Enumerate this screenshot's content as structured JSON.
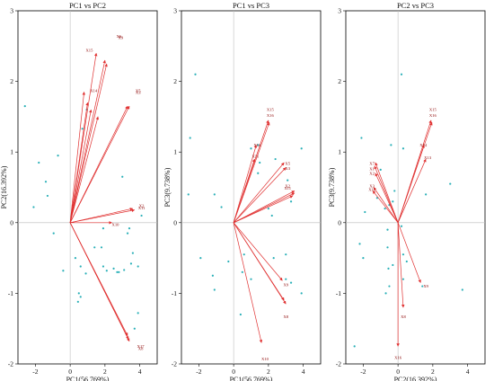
{
  "colors": {
    "arrow": "#e03030",
    "label": "#8b0000",
    "point": "#2ab0b8",
    "frame": "#000000",
    "zero": "#bdbdbd"
  },
  "chart_data": [
    {
      "type": "scatter",
      "title": "PC1 vs PC2",
      "xlabel": "PC1(56.769%)",
      "ylabel": "PC2(16.392%)",
      "xlim": [
        -3,
        5
      ],
      "ylim": [
        -2,
        3
      ],
      "xticks": [
        "-2",
        "0",
        "2",
        "4"
      ],
      "yticks": [
        "-2",
        "-1",
        "0",
        "1",
        "2",
        "3"
      ],
      "grid": false,
      "points": [
        {
          "x": -2.6,
          "y": 1.65
        },
        {
          "x": -1.8,
          "y": 0.85
        },
        {
          "x": -1.4,
          "y": 0.58
        },
        {
          "x": -1.3,
          "y": 0.38
        },
        {
          "x": -0.7,
          "y": 0.95
        },
        {
          "x": -2.1,
          "y": 0.22
        },
        {
          "x": -0.95,
          "y": -0.15
        },
        {
          "x": -0.4,
          "y": -0.68
        },
        {
          "x": 0.3,
          "y": -0.5
        },
        {
          "x": 0.6,
          "y": -0.62
        },
        {
          "x": 0.9,
          "y": -0.72
        },
        {
          "x": 0.6,
          "y": -1.05
        },
        {
          "x": 0.45,
          "y": -1.12
        },
        {
          "x": 0.5,
          "y": -1.0
        },
        {
          "x": 1.4,
          "y": -0.35
        },
        {
          "x": 1.8,
          "y": -0.35
        },
        {
          "x": 2.1,
          "y": -0.68
        },
        {
          "x": 2.5,
          "y": -0.65
        },
        {
          "x": 2.7,
          "y": -0.7
        },
        {
          "x": 3.1,
          "y": -0.67
        },
        {
          "x": 3.5,
          "y": -0.58
        },
        {
          "x": 3.6,
          "y": -0.43
        },
        {
          "x": 3.9,
          "y": -0.62
        },
        {
          "x": 3.4,
          "y": -0.08
        },
        {
          "x": 3.0,
          "y": 0.65
        },
        {
          "x": 4.1,
          "y": 0.1
        },
        {
          "x": 3.3,
          "y": -0.15
        },
        {
          "x": 3.9,
          "y": -1.28
        },
        {
          "x": 1.9,
          "y": -0.08
        },
        {
          "x": 3.7,
          "y": -1.5
        },
        {
          "x": 0.7,
          "y": 1.33
        },
        {
          "x": 0.95,
          "y": 1.6
        },
        {
          "x": 1.9,
          "y": -0.62
        },
        {
          "x": 2.8,
          "y": -0.7
        }
      ],
      "vectors": [
        {
          "label": "X15",
          "x": 1.5,
          "y": 2.4,
          "lx": 1.1,
          "ly": 2.42
        },
        {
          "label": "X6",
          "x": 2.0,
          "y": 2.3,
          "lx": 2.8,
          "ly": 2.62
        },
        {
          "label": "X9",
          "x": 2.1,
          "y": 2.25,
          "lx": 2.9,
          "ly": 2.6
        },
        {
          "label": "X14",
          "x": 0.8,
          "y": 1.85,
          "lx": 1.35,
          "ly": 1.85
        },
        {
          "label": "X1",
          "x": 1.0,
          "y": 1.7,
          "lx": null,
          "ly": null
        },
        {
          "label": "X2",
          "x": 1.2,
          "y": 1.6,
          "lx": null,
          "ly": null
        },
        {
          "label": "X4",
          "x": 1.6,
          "y": 1.5,
          "lx": null,
          "ly": null
        },
        {
          "label": "X5",
          "x": 3.3,
          "y": 1.65,
          "lx": 3.9,
          "ly": 1.85
        },
        {
          "label": "X3",
          "x": 3.4,
          "y": 1.65,
          "lx": 3.9,
          "ly": 1.82
        },
        {
          "label": "X2",
          "x": 3.6,
          "y": 0.2,
          "lx": 4.1,
          "ly": 0.22
        },
        {
          "label": "X11",
          "x": 3.7,
          "y": 0.18,
          "lx": 4.1,
          "ly": 0.19
        },
        {
          "label": "X10",
          "x": 2.4,
          "y": 0.0,
          "lx": 2.6,
          "ly": -0.05
        },
        {
          "label": "X12",
          "x": 3.3,
          "y": -1.6,
          "lx": null,
          "ly": null
        },
        {
          "label": "X17",
          "x": 3.35,
          "y": -1.65,
          "lx": 4.05,
          "ly": -1.77
        },
        {
          "label": "X8",
          "x": 3.4,
          "y": -1.68,
          "lx": 4.05,
          "ly": -1.8
        }
      ]
    },
    {
      "type": "scatter",
      "title": "PC1 vs PC3",
      "xlabel": "PC1(56.769%)",
      "ylabel": "PC3(9.738%)",
      "xlim": [
        -3,
        5
      ],
      "ylim": [
        -2,
        3
      ],
      "xticks": [
        "-2",
        "0",
        "2",
        "4"
      ],
      "yticks": [
        "-2",
        "-1",
        "0",
        "1",
        "2",
        "3"
      ],
      "grid": false,
      "points": [
        {
          "x": -2.2,
          "y": 2.1
        },
        {
          "x": -2.5,
          "y": 1.2
        },
        {
          "x": -2.6,
          "y": 0.4
        },
        {
          "x": -1.1,
          "y": 0.4
        },
        {
          "x": -0.7,
          "y": 0.22
        },
        {
          "x": -1.9,
          "y": -0.5
        },
        {
          "x": -1.2,
          "y": -0.75
        },
        {
          "x": -1.1,
          "y": -0.95
        },
        {
          "x": -0.3,
          "y": -0.55
        },
        {
          "x": 0.6,
          "y": -0.45
        },
        {
          "x": 0.5,
          "y": -0.7
        },
        {
          "x": 1.0,
          "y": -0.8
        },
        {
          "x": 0.4,
          "y": -1.3
        },
        {
          "x": 2.3,
          "y": -0.5
        },
        {
          "x": 3.0,
          "y": -0.45
        },
        {
          "x": 3.3,
          "y": -0.85
        },
        {
          "x": 3.9,
          "y": -1.0
        },
        {
          "x": 1.4,
          "y": 0.7
        },
        {
          "x": 1.5,
          "y": 0.85
        },
        {
          "x": 2.4,
          "y": 0.9
        },
        {
          "x": 3.1,
          "y": 0.6
        },
        {
          "x": 3.9,
          "y": 1.05
        },
        {
          "x": 1.0,
          "y": 1.05
        },
        {
          "x": 1.4,
          "y": 1.1
        },
        {
          "x": 2.0,
          "y": 0.2
        },
        {
          "x": 2.2,
          "y": 0.1
        },
        {
          "x": 3.3,
          "y": 0.3
        },
        {
          "x": 3.0,
          "y": -0.8
        }
      ],
      "vectors": [
        {
          "label": "X15",
          "x": 2.0,
          "y": 1.45,
          "lx": 2.1,
          "ly": 1.58
        },
        {
          "label": "X16",
          "x": 2.05,
          "y": 1.42,
          "lx": 2.1,
          "ly": 1.5
        },
        {
          "label": "X14",
          "x": 1.3,
          "y": 1.1,
          "lx": 1.35,
          "ly": 1.08
        },
        {
          "label": "X11",
          "x": 1.2,
          "y": 0.9,
          "lx": 1.25,
          "ly": 0.92
        },
        {
          "label": "X5",
          "x": 2.9,
          "y": 0.85,
          "lx": 3.1,
          "ly": 0.82
        },
        {
          "label": "X3",
          "x": 3.0,
          "y": 0.78,
          "lx": 3.1,
          "ly": 0.75
        },
        {
          "label": "X2",
          "x": 3.5,
          "y": 0.45,
          "lx": 3.1,
          "ly": 0.5
        },
        {
          "label": "X11",
          "x": 3.5,
          "y": 0.42,
          "lx": 3.1,
          "ly": 0.47
        },
        {
          "label": "X10",
          "x": 3.4,
          "y": 0.38,
          "lx": null,
          "ly": null
        },
        {
          "label": "X9",
          "x": 2.8,
          "y": -0.82,
          "lx": 3.0,
          "ly": -0.9
        },
        {
          "label": "X7",
          "x": 2.9,
          "y": -1.1,
          "lx": null,
          "ly": null
        },
        {
          "label": "X8",
          "x": 3.0,
          "y": -1.15,
          "lx": 3.0,
          "ly": -1.35
        },
        {
          "label": "X10",
          "x": 1.6,
          "y": -1.7,
          "lx": 1.8,
          "ly": -1.95
        }
      ]
    },
    {
      "type": "scatter",
      "title": "PC2 vs PC3",
      "xlabel": "PC2(16.392%)",
      "ylabel": "PC3(9.738%)",
      "xlim": [
        -3,
        5
      ],
      "ylim": [
        -2,
        3
      ],
      "xticks": [
        "-2",
        "0",
        "2",
        "4"
      ],
      "yticks": [
        "-2",
        "-1",
        "0",
        "1",
        "2",
        "3"
      ],
      "grid": false,
      "points": [
        {
          "x": 0.2,
          "y": 2.1
        },
        {
          "x": -2.1,
          "y": 1.2
        },
        {
          "x": -0.4,
          "y": 1.1
        },
        {
          "x": 0.3,
          "y": 1.05
        },
        {
          "x": -1.0,
          "y": 0.75
        },
        {
          "x": -0.2,
          "y": 0.45
        },
        {
          "x": -1.2,
          "y": 0.35
        },
        {
          "x": -1.9,
          "y": 0.15
        },
        {
          "x": -0.75,
          "y": 0.2
        },
        {
          "x": -0.5,
          "y": 0.25
        },
        {
          "x": -0.3,
          "y": 0.3
        },
        {
          "x": 1.6,
          "y": 0.4
        },
        {
          "x": 3.0,
          "y": 0.55
        },
        {
          "x": -2.2,
          "y": -0.3
        },
        {
          "x": -2.0,
          "y": -0.5
        },
        {
          "x": -0.6,
          "y": -0.1
        },
        {
          "x": -0.6,
          "y": -0.35
        },
        {
          "x": -0.55,
          "y": -0.65
        },
        {
          "x": -0.5,
          "y": -0.9
        },
        {
          "x": -0.7,
          "y": -1.0
        },
        {
          "x": 0.3,
          "y": -0.8
        },
        {
          "x": 0.5,
          "y": -0.55
        },
        {
          "x": 0.3,
          "y": -0.45
        },
        {
          "x": 1.4,
          "y": -0.9
        },
        {
          "x": 3.7,
          "y": -0.95
        },
        {
          "x": -2.5,
          "y": -1.75
        },
        {
          "x": 0.2,
          "y": -0.05
        },
        {
          "x": -0.3,
          "y": -0.6
        }
      ],
      "vectors": [
        {
          "label": "X15",
          "x": 1.9,
          "y": 1.45,
          "lx": 2.0,
          "ly": 1.58
        },
        {
          "label": "X16",
          "x": 1.95,
          "y": 1.42,
          "lx": 2.0,
          "ly": 1.5
        },
        {
          "label": "X14",
          "x": 1.5,
          "y": 1.1,
          "lx": 1.45,
          "ly": 1.08
        },
        {
          "label": "X13",
          "x": 1.6,
          "y": 0.9,
          "lx": 1.7,
          "ly": 0.9
        },
        {
          "label": "X7",
          "x": -1.3,
          "y": 0.85,
          "lx": -1.5,
          "ly": 0.82
        },
        {
          "label": "X1",
          "x": -1.35,
          "y": 0.8,
          "lx": -1.5,
          "ly": 0.74
        },
        {
          "label": "X2",
          "x": -1.3,
          "y": 0.7,
          "lx": -1.5,
          "ly": 0.68
        },
        {
          "label": "X3",
          "x": -1.4,
          "y": 0.5,
          "lx": -1.5,
          "ly": 0.5
        },
        {
          "label": "X11",
          "x": -1.45,
          "y": 0.45,
          "lx": -1.5,
          "ly": 0.45
        },
        {
          "label": "X9",
          "x": 1.3,
          "y": -0.85,
          "lx": 1.6,
          "ly": -0.92
        },
        {
          "label": "X8",
          "x": 0.3,
          "y": -1.2,
          "lx": 0.3,
          "ly": -1.35
        },
        {
          "label": "X16",
          "x": 0.0,
          "y": -1.75,
          "lx": 0.0,
          "ly": -1.93
        }
      ]
    }
  ]
}
